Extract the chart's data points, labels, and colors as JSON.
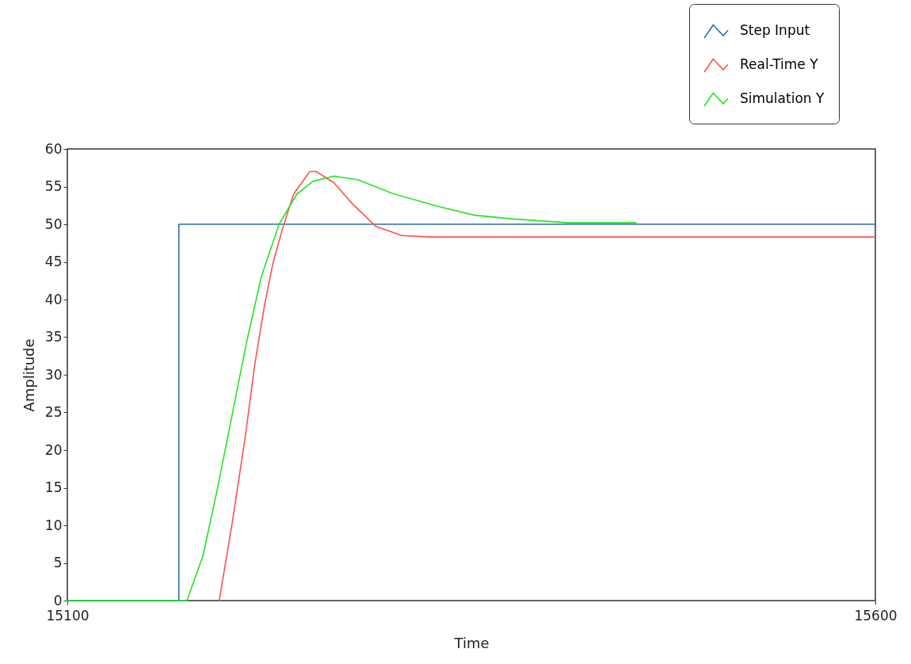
{
  "chart_data": {
    "type": "line",
    "xlabel": "Time",
    "ylabel": "Amplitude",
    "xlim": [
      15100,
      15600
    ],
    "xticks": [
      15100,
      15600
    ],
    "ylim": [
      0,
      60
    ],
    "yticks": [
      0,
      5,
      10,
      15,
      20,
      25,
      30,
      35,
      40,
      45,
      50,
      55,
      60
    ],
    "grid": false,
    "legend": "top right",
    "marker": "none",
    "line_style": "solid",
    "series": [
      {
        "name": "Step Input",
        "color": "#2a6fb0",
        "x": [
          15100,
          15169,
          15169,
          15600
        ],
        "values": [
          0,
          0,
          50,
          50
        ]
      },
      {
        "name": "Real-Time Y",
        "color": "#ff5050",
        "x": [
          15194,
          15202,
          15210,
          15216,
          15222,
          15227,
          15233,
          15240,
          15250,
          15254,
          15265,
          15276,
          15291,
          15307,
          15324,
          15600
        ],
        "values": [
          0,
          10.3,
          21.6,
          31.4,
          39.2,
          44.6,
          49.3,
          54,
          57,
          57,
          55.5,
          52.8,
          49.7,
          48.5,
          48.3,
          48.3
        ]
      },
      {
        "name": "Simulation Y",
        "color": "#22e622",
        "x": [
          15100,
          15174,
          15184,
          15193,
          15202,
          15211,
          15220,
          15231,
          15242,
          15252,
          15265,
          15280,
          15301,
          15329,
          15352,
          15376,
          15410,
          15452
        ],
        "values": [
          0,
          0,
          6,
          15,
          24.7,
          34.4,
          43,
          50,
          54,
          55.7,
          56.4,
          55.9,
          54.1,
          52.4,
          51.2,
          50.7,
          50.2,
          50.2
        ]
      }
    ]
  }
}
